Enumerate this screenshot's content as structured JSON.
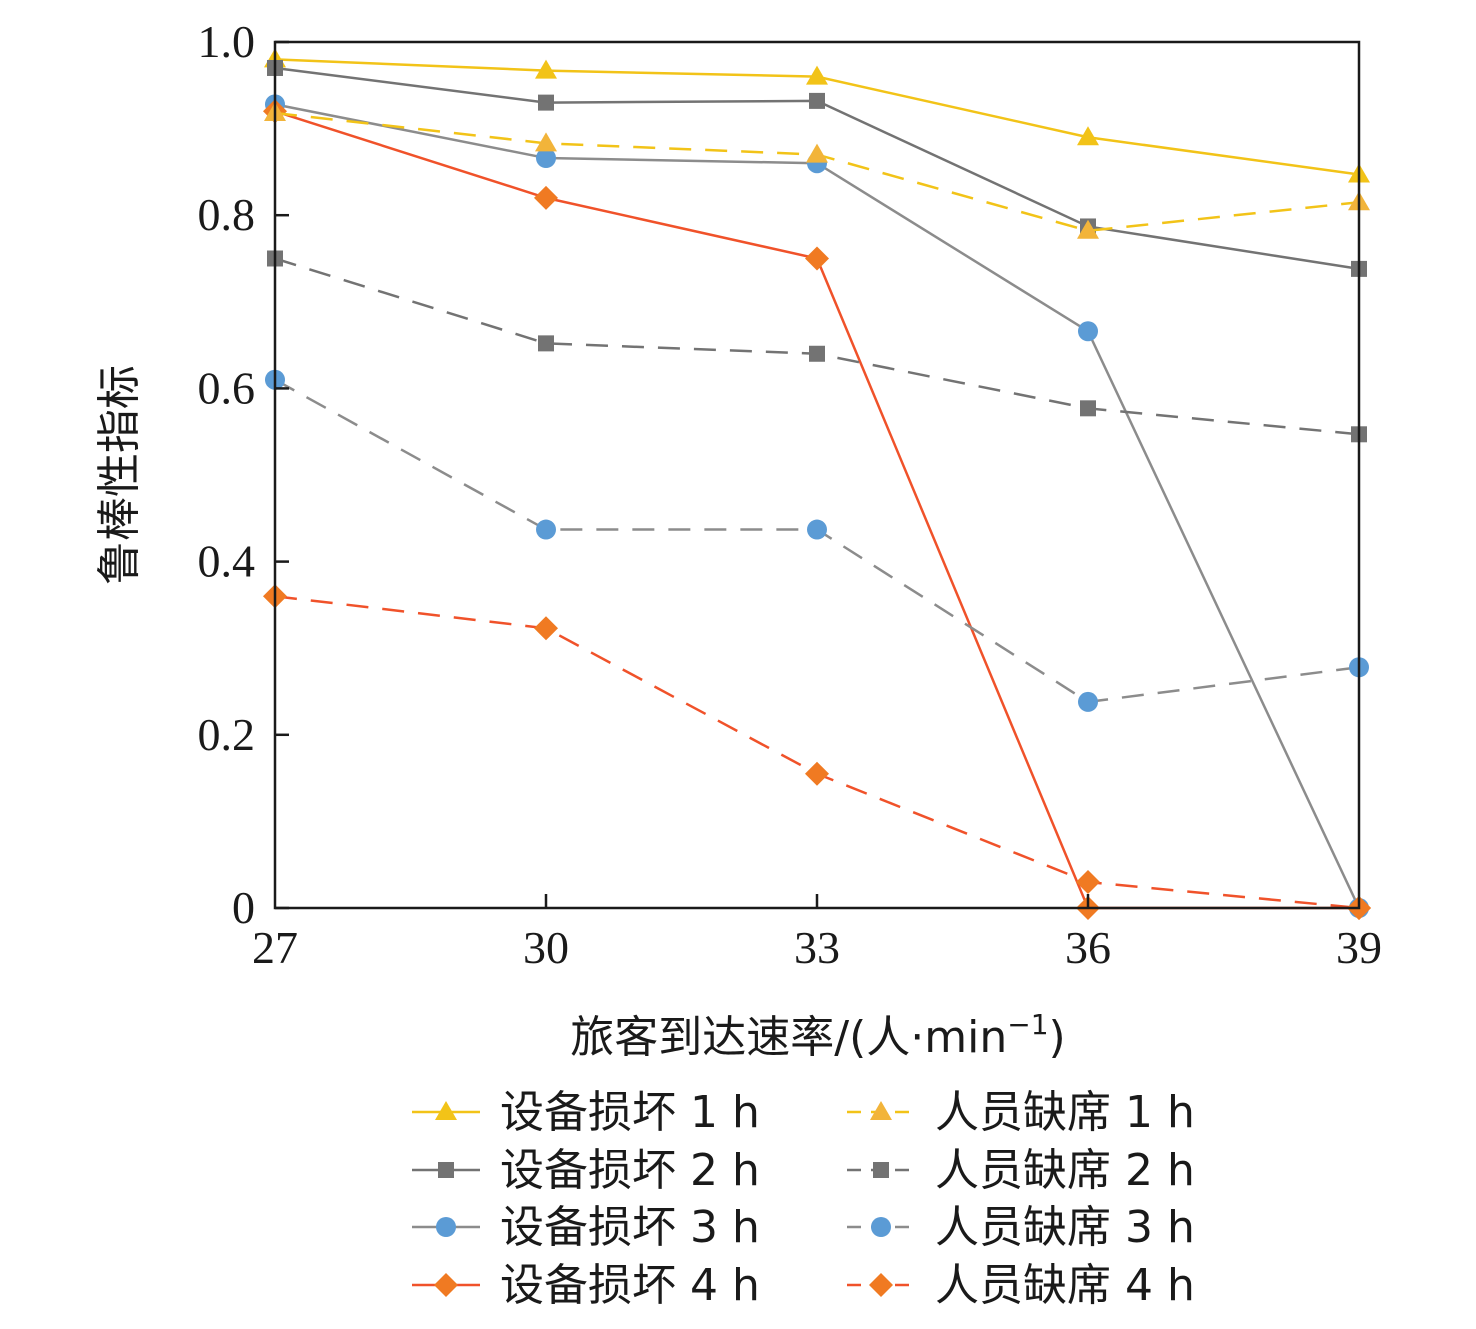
{
  "chart_data": {
    "type": "line",
    "x": [
      27,
      30,
      33,
      36,
      39
    ],
    "xlabel": "旅客到达速率/(人·min",
    "xlabel_sup": "−1",
    "xlabel_close": ")",
    "ylabel": "鲁棒性指标",
    "xlim": [
      27,
      39
    ],
    "ylim": [
      0,
      1.0
    ],
    "x_ticks": [
      "27",
      "30",
      "33",
      "36",
      "39"
    ],
    "y_ticks": [
      {
        "value": 0,
        "label": "0"
      },
      {
        "value": 0.2,
        "label": "0.2"
      },
      {
        "value": 0.4,
        "label": "0.4"
      },
      {
        "value": 0.6,
        "label": "0.6"
      },
      {
        "value": 0.8,
        "label": "0.8"
      },
      {
        "value": 1.0,
        "label": "1.0"
      }
    ],
    "grid": false,
    "legend_position": "bottom",
    "series": [
      {
        "name": "设备损坏 1 h",
        "values": [
          0.98,
          0.967,
          0.96,
          0.89,
          0.847
        ],
        "color": "#f2c318",
        "marker": "triangle",
        "dash": false,
        "marker_color": "#f2c318"
      },
      {
        "name": "设备损坏 2 h",
        "values": [
          0.97,
          0.93,
          0.932,
          0.787,
          0.738
        ],
        "color": "#737373",
        "marker": "square",
        "dash": false,
        "marker_color": "#737373"
      },
      {
        "name": "设备损坏 3 h",
        "values": [
          0.928,
          0.866,
          0.86,
          0.666,
          0.0
        ],
        "color": "#8c8c8c",
        "marker": "circle",
        "dash": false,
        "marker_color": "#5b9bd5"
      },
      {
        "name": "设备损坏 4 h",
        "values": [
          0.92,
          0.82,
          0.75,
          0.0,
          0.0
        ],
        "color": "#f0522a",
        "marker": "diamond",
        "dash": false,
        "marker_color": "#f07a22"
      },
      {
        "name": "人员缺席 1 h",
        "values": [
          0.918,
          0.883,
          0.87,
          0.782,
          0.815
        ],
        "color": "#f2c318",
        "marker": "triangle",
        "dash": true,
        "marker_color": "#f2b43a"
      },
      {
        "name": "人员缺席 2 h",
        "values": [
          0.75,
          0.652,
          0.64,
          0.577,
          0.547
        ],
        "color": "#737373",
        "marker": "square",
        "dash": true,
        "marker_color": "#737373"
      },
      {
        "name": "人员缺席 3 h",
        "values": [
          0.61,
          0.437,
          0.437,
          0.238,
          0.278
        ],
        "color": "#8c8c8c",
        "marker": "circle",
        "dash": true,
        "marker_color": "#5b9bd5"
      },
      {
        "name": "人员缺席 4 h",
        "values": [
          0.36,
          0.323,
          0.155,
          0.03,
          0.0
        ],
        "color": "#f0522a",
        "marker": "diamond",
        "dash": true,
        "marker_color": "#f07a22"
      }
    ]
  }
}
